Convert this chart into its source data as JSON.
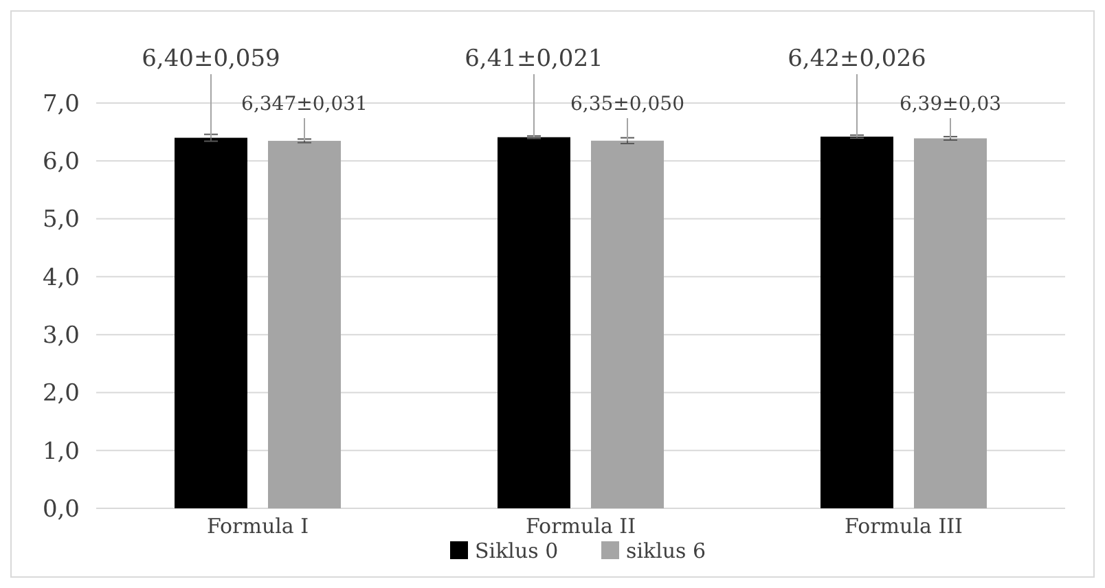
{
  "chart_data": {
    "type": "bar",
    "categories": [
      "Formula I",
      "Formula II",
      "Formula III"
    ],
    "series": [
      {
        "name": "Siklus 0",
        "color": "#000000",
        "values": [
          6.4,
          6.41,
          6.42
        ],
        "errors": [
          0.059,
          0.021,
          0.026
        ],
        "value_labels": [
          "6,40±0,059",
          "6,41±0,021",
          "6,42±0,026"
        ]
      },
      {
        "name": "siklus 6",
        "color": "#a5a5a5",
        "values": [
          6.347,
          6.35,
          6.39
        ],
        "errors": [
          0.031,
          0.05,
          0.03
        ],
        "value_labels": [
          "6,347±0,031",
          "6,35±0,050",
          "6,39±0,03"
        ]
      }
    ],
    "ylim": [
      0,
      7
    ],
    "yticks": [
      {
        "value": 0,
        "label": "0,0"
      },
      {
        "value": 1,
        "label": "1,0"
      },
      {
        "value": 2,
        "label": "2,0"
      },
      {
        "value": 3,
        "label": "3,0"
      },
      {
        "value": 4,
        "label": "4,0"
      },
      {
        "value": 5,
        "label": "5,0"
      },
      {
        "value": 6,
        "label": "6,0"
      },
      {
        "value": 7,
        "label": "7,0"
      }
    ],
    "grid": "y",
    "legend": "bottom"
  }
}
